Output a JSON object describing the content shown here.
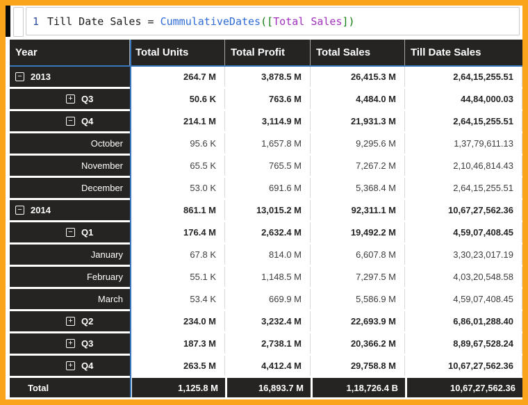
{
  "colors": {
    "frame_orange": "#FAA41B",
    "dark_cell": "#252423",
    "accent_blue": "#3A78BE",
    "grid_line": "#D9D9D9",
    "function_blue": "#2E6BD6",
    "paren_green": "#107C10",
    "reference_purple": "#A12FBE",
    "line_number_navy": "#2B4BA0"
  },
  "formula": {
    "line_number": "1",
    "tokens": [
      {
        "text": "Till Date Sales = ",
        "type": "plain"
      },
      {
        "text": "CummulativeDates",
        "type": "function"
      },
      {
        "text": "([",
        "type": "paren"
      },
      {
        "text": "Total Sales",
        "type": "reference"
      },
      {
        "text": "])",
        "type": "paren"
      }
    ]
  },
  "table": {
    "columns": [
      "Year",
      "Total Units",
      "Total Profit",
      "Total Sales",
      "Till Date Sales"
    ],
    "rows": [
      {
        "level": "year",
        "expand": "minus",
        "label": "2013",
        "values": [
          "264.7 M",
          "3,878.5 M",
          "26,415.3 M",
          "2,64,15,255.51"
        ]
      },
      {
        "level": "quarter",
        "expand": "plus",
        "label": "Q3",
        "values": [
          "50.6 K",
          "763.6 M",
          "4,484.0 M",
          "44,84,000.03"
        ]
      },
      {
        "level": "quarter",
        "expand": "minus",
        "label": "Q4",
        "values": [
          "214.1 M",
          "3,114.9 M",
          "21,931.3 M",
          "2,64,15,255.51"
        ]
      },
      {
        "level": "month",
        "label": "October",
        "values": [
          "95.6 K",
          "1,657.8 M",
          "9,295.6 M",
          "1,37,79,611.13"
        ]
      },
      {
        "level": "month",
        "label": "November",
        "values": [
          "65.5 K",
          "765.5 M",
          "7,267.2 M",
          "2,10,46,814.43"
        ]
      },
      {
        "level": "month",
        "label": "December",
        "values": [
          "53.0 K",
          "691.6 M",
          "5,368.4 M",
          "2,64,15,255.51"
        ]
      },
      {
        "level": "year",
        "expand": "minus",
        "label": "2014",
        "values": [
          "861.1 M",
          "13,015.2 M",
          "92,311.1 M",
          "10,67,27,562.36"
        ]
      },
      {
        "level": "quarter",
        "expand": "minus",
        "label": "Q1",
        "values": [
          "176.4 M",
          "2,632.4 M",
          "19,492.2 M",
          "4,59,07,408.45"
        ]
      },
      {
        "level": "month",
        "label": "January",
        "values": [
          "67.8 K",
          "814.0 M",
          "6,607.8 M",
          "3,30,23,017.19"
        ]
      },
      {
        "level": "month",
        "label": "February",
        "values": [
          "55.1 K",
          "1,148.5 M",
          "7,297.5 M",
          "4,03,20,548.58"
        ]
      },
      {
        "level": "month",
        "label": "March",
        "values": [
          "53.4 K",
          "669.9 M",
          "5,586.9 M",
          "4,59,07,408.45"
        ]
      },
      {
        "level": "quarter",
        "expand": "plus",
        "label": "Q2",
        "values": [
          "234.0 M",
          "3,232.4 M",
          "22,693.9 M",
          "6,86,01,288.40"
        ]
      },
      {
        "level": "quarter",
        "expand": "plus",
        "label": "Q3",
        "values": [
          "187.3 M",
          "2,738.1 M",
          "20,366.2 M",
          "8,89,67,528.24"
        ]
      },
      {
        "level": "quarter",
        "expand": "plus",
        "label": "Q4",
        "values": [
          "263.5 M",
          "4,412.4 M",
          "29,758.8 M",
          "10,67,27,562.36"
        ]
      }
    ],
    "total": {
      "label": "Total",
      "values": [
        "1,125.8 M",
        "16,893.7 M",
        "1,18,726.4 B",
        "10,67,27,562.36"
      ]
    }
  }
}
